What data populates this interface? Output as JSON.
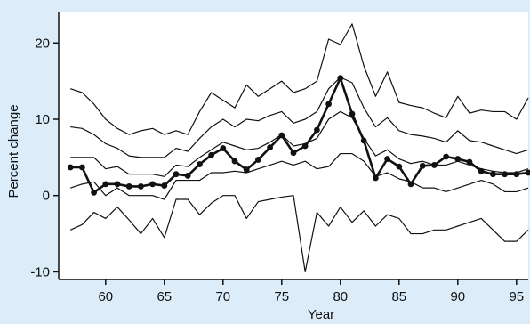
{
  "chart_data": {
    "type": "line",
    "title": "",
    "xlabel": "Year",
    "ylabel": "Percent change",
    "xlim": [
      56,
      96
    ],
    "ylim": [
      -11,
      24
    ],
    "x_ticks": [
      60,
      65,
      70,
      75,
      80,
      85,
      90,
      95
    ],
    "y_ticks": [
      -10,
      0,
      10,
      20
    ],
    "grid": false,
    "legend": "none",
    "x": [
      57,
      58,
      59,
      60,
      61,
      62,
      63,
      64,
      65,
      66,
      67,
      68,
      69,
      70,
      71,
      72,
      73,
      74,
      75,
      76,
      77,
      78,
      79,
      80,
      81,
      82,
      83,
      84,
      85,
      86,
      87,
      88,
      89,
      90,
      91,
      92,
      93,
      94,
      95,
      96
    ],
    "series": [
      {
        "emphasis": true,
        "values": [
          3.7,
          3.7,
          0.4,
          1.5,
          1.5,
          1.2,
          1.2,
          1.5,
          1.3,
          2.8,
          2.6,
          4.1,
          5.3,
          6.2,
          4.5,
          3.4,
          4.7,
          6.3,
          7.9,
          5.6,
          6.5,
          8.6,
          12.0,
          15.4,
          10.7,
          7.2,
          2.3,
          4.8,
          3.8,
          1.5,
          3.9,
          4.0,
          5.1,
          4.8,
          4.4,
          3.2,
          2.8,
          2.8,
          2.8,
          3.0
        ]
      },
      {
        "values": [
          14.0,
          13.5,
          12.0,
          10.0,
          8.8,
          8.0,
          8.5,
          8.8,
          8.0,
          8.5,
          8.0,
          11.0,
          13.5,
          12.5,
          11.5,
          14.5,
          13.0,
          14.0,
          15.0,
          13.5,
          14.0,
          15.0,
          20.5,
          19.8,
          22.5,
          17.0,
          13.0,
          16.2,
          12.2,
          11.8,
          11.5,
          10.8,
          10.2,
          13.0,
          10.8,
          11.2,
          11.0,
          11.0,
          10.0,
          12.8
        ]
      },
      {
        "values": [
          9.0,
          8.8,
          8.0,
          6.8,
          6.2,
          5.2,
          5.0,
          5.0,
          5.0,
          6.2,
          5.8,
          7.5,
          9.0,
          10.0,
          9.0,
          10.0,
          9.8,
          10.5,
          11.0,
          9.5,
          10.0,
          11.0,
          14.0,
          15.5,
          14.8,
          11.5,
          9.0,
          10.2,
          8.5,
          8.0,
          7.8,
          7.5,
          7.0,
          8.5,
          7.2,
          7.0,
          6.5,
          6.0,
          5.5,
          6.0
        ]
      },
      {
        "values": [
          5.0,
          5.0,
          5.0,
          3.5,
          3.8,
          2.8,
          2.8,
          2.8,
          2.5,
          4.0,
          3.8,
          5.0,
          6.0,
          7.0,
          6.5,
          6.0,
          6.2,
          7.0,
          8.0,
          6.5,
          6.8,
          7.5,
          10.0,
          11.0,
          10.2,
          7.5,
          5.2,
          6.0,
          4.8,
          4.2,
          4.5,
          4.0,
          4.0,
          4.5,
          4.0,
          3.5,
          3.2,
          3.0,
          3.0,
          3.5
        ]
      },
      {
        "values": [
          1.0,
          1.5,
          1.8,
          0.0,
          1.0,
          0.0,
          0.0,
          0.0,
          -0.5,
          2.0,
          2.0,
          2.0,
          3.0,
          3.0,
          3.2,
          3.0,
          3.5,
          4.0,
          4.5,
          4.0,
          4.5,
          3.5,
          3.8,
          5.5,
          5.5,
          4.5,
          2.5,
          3.0,
          2.2,
          1.8,
          1.0,
          1.0,
          0.5,
          1.0,
          1.5,
          2.0,
          1.5,
          0.5,
          0.5,
          1.0
        ]
      },
      {
        "values": [
          -4.5,
          -3.8,
          -2.2,
          -3.0,
          -1.5,
          -3.2,
          -5.0,
          -3.0,
          -5.5,
          -0.5,
          -0.5,
          -2.5,
          -1.0,
          0.0,
          0.0,
          -3.0,
          -0.8,
          -0.5,
          -0.2,
          0.0,
          -10.0,
          -2.2,
          -4.0,
          -1.5,
          -3.5,
          -2.0,
          -4.0,
          -2.5,
          -3.0,
          -5.0,
          -5.0,
          -4.5,
          -4.5,
          -4.0,
          -3.5,
          -3.0,
          -4.5,
          -6.0,
          -6.0,
          -4.5
        ]
      }
    ]
  }
}
